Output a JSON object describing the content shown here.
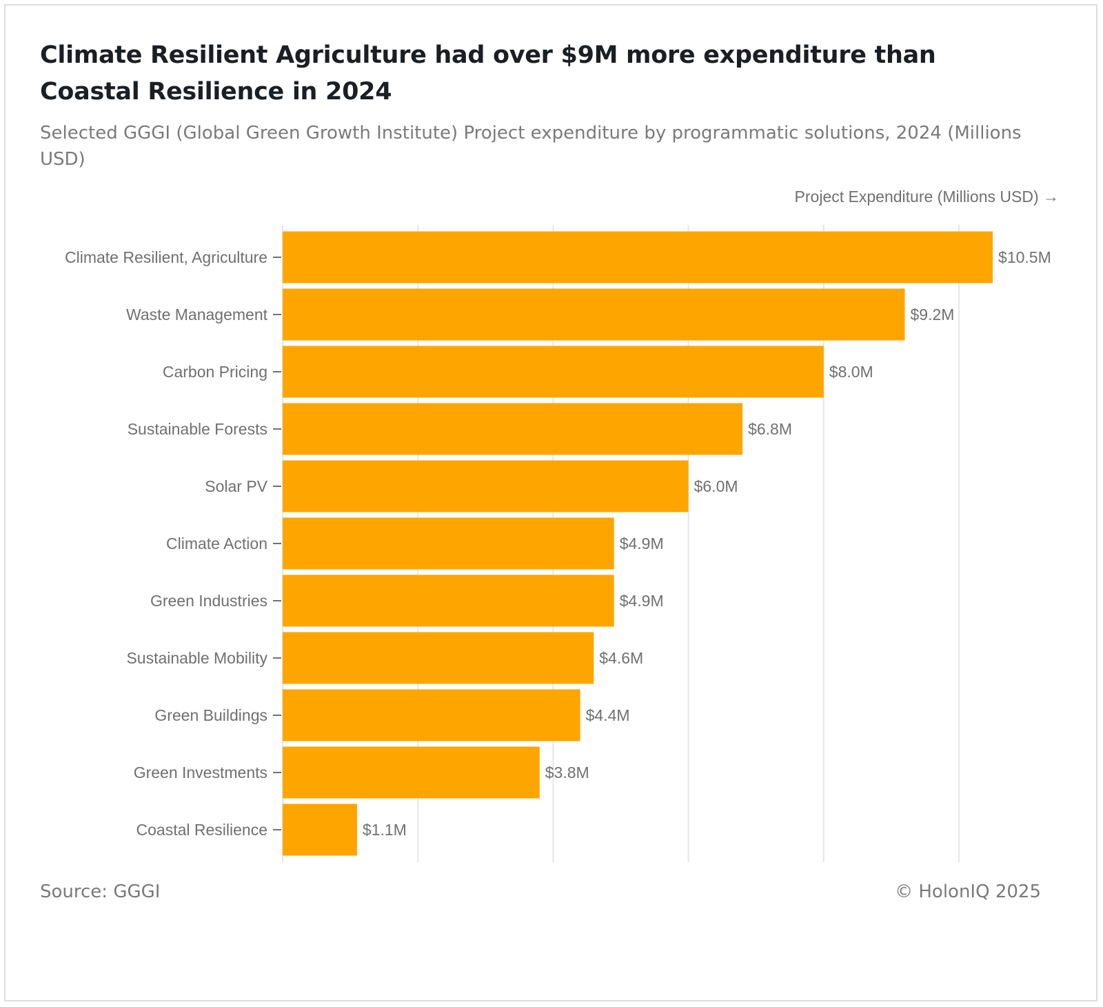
{
  "title": "Climate Resilient Agriculture had over $9M more expenditure than Coastal Resilience in 2024",
  "subtitle": "Selected GGGI (Global Green Growth Institute) Project expenditure by programmatic solutions, 2024 (Millions USD)",
  "axis_label": "Project Expenditure (Millions USD) →",
  "source": "Source: GGGI",
  "copyright": "© HolonIQ 2025",
  "colors": {
    "bar": "#FFA500",
    "grid": "#e6e6e6",
    "tick_label": "#707070",
    "axis_tick": "#707070"
  },
  "chart_data": {
    "type": "bar",
    "orientation": "horizontal",
    "title": "Climate Resilient Agriculture had over $9M more expenditure than Coastal Resilience in 2024",
    "xlabel": "Project Expenditure (Millions USD) →",
    "ylabel": "",
    "xlim": [
      0,
      12
    ],
    "grid": true,
    "categories": [
      "Climate Resilient, Agriculture",
      "Waste Management",
      "Carbon Pricing",
      "Sustainable Forests",
      "Solar PV",
      "Climate Action",
      "Green Industries",
      "Sustainable Mobility",
      "Green Buildings",
      "Green Investments",
      "Coastal Resilience"
    ],
    "values": [
      10.5,
      9.2,
      8.0,
      6.8,
      6.0,
      4.9,
      4.9,
      4.6,
      4.4,
      3.8,
      1.1
    ],
    "data_labels": [
      "$10.5M",
      "$9.2M",
      "$8.0M",
      "$6.8M",
      "$6.0M",
      "$4.9M",
      "$4.9M",
      "$4.6M",
      "$4.4M",
      "$3.8M",
      "$1.1M"
    ],
    "gridlines": [
      0,
      2,
      4,
      6,
      8,
      10
    ]
  }
}
